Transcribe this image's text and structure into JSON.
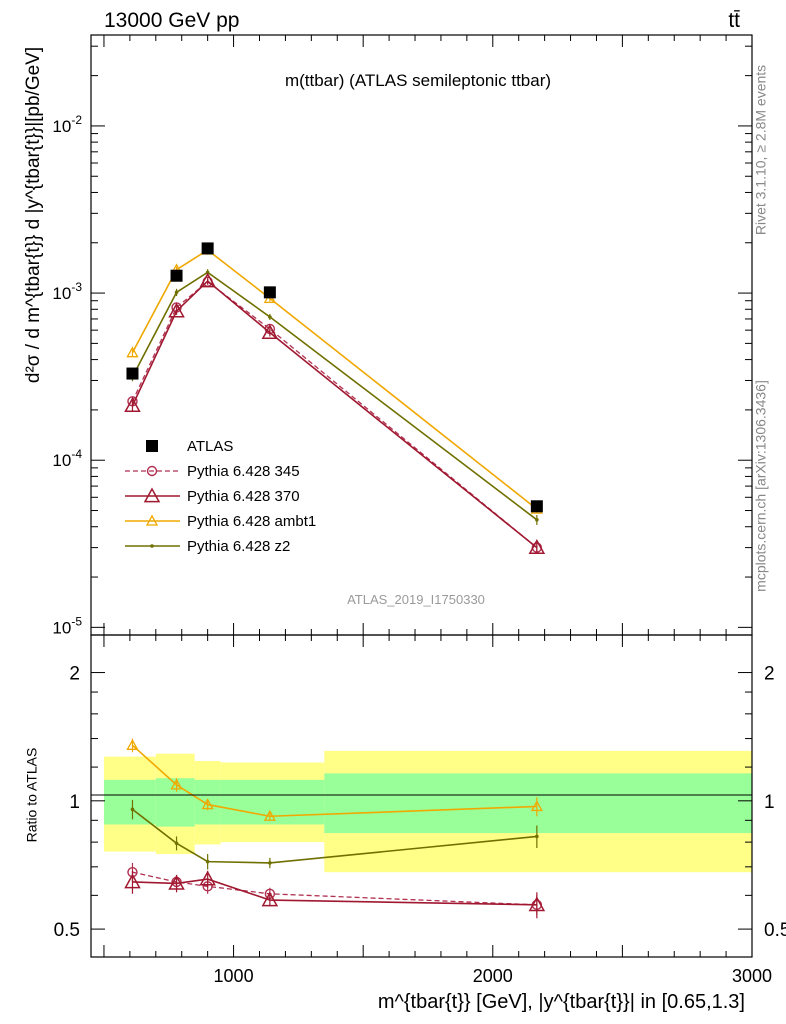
{
  "header": {
    "left": "13000 GeV pp",
    "right": "tt̄"
  },
  "side": {
    "rivet": "Rivet 3.1.10, ≥ 2.8M events",
    "mcplots": "mcplots.cern.ch [arXiv:1306.3436]"
  },
  "plot": {
    "title": "m(ttbar) (ATLAS semileptonic ttbar)",
    "analysis": "ATLAS_2019_I1750330",
    "ylabel": "d²σ / d m^{tbar{t}} d |y^{tbar{t}}|[pb/GeV]",
    "ratio_ylabel": "Ratio to ATLAS",
    "xlabel": "m^{tbar{t}} [GeV], |y^{tbar{t}}| in [0.65,1.3]"
  },
  "colors": {
    "data": "#000000",
    "p345": "#b03050",
    "p370": "#a01830",
    "ambt1": "#f0a800",
    "z2": "#707000",
    "band_inner": "#99ff99",
    "band_outer": "#ffff88"
  },
  "chart_data": [
    {
      "type": "line",
      "yscale": "log",
      "xlim": [
        450,
        3000
      ],
      "ylim": [
        9e-06,
        0.035
      ],
      "xticks": [
        1000,
        2000,
        3000
      ],
      "ytick_labels": [
        "10^-5",
        "10^-4",
        "10^-3",
        "10^-2"
      ],
      "legend_position": "middle-left",
      "bins": [
        [
          500,
          700
        ],
        [
          700,
          850
        ],
        [
          850,
          950
        ],
        [
          950,
          1350
        ],
        [
          1350,
          3000
        ]
      ],
      "x": [
        610,
        780,
        900,
        1140,
        2170
      ],
      "series": [
        {
          "name": "ATLAS",
          "values": [
            0.00033,
            0.00127,
            0.00185,
            0.00101,
            5.3e-05
          ]
        },
        {
          "name": "Pythia 6.428 345",
          "values": [
            0.000225,
            0.00082,
            0.00117,
            0.00061,
            3e-05
          ],
          "err": [
            1.5e-05,
            4e-05,
            5e-05,
            3e-05,
            1.8e-06
          ]
        },
        {
          "name": "Pythia 6.428 370",
          "values": [
            0.000212,
            0.00078,
            0.00118,
            0.00058,
            3e-05
          ],
          "err": [
            1.5e-05,
            4e-05,
            5e-05,
            3e-05,
            1.8e-06
          ]
        },
        {
          "name": "Pythia 6.428 ambt1",
          "values": [
            0.00044,
            0.00138,
            0.00181,
            0.00093,
            5.1e-05
          ],
          "err": [
            2e-05,
            6e-05,
            7e-05,
            4e-05,
            2.5e-06
          ]
        },
        {
          "name": "Pythia 6.428 z2",
          "values": [
            0.000315,
            0.00101,
            0.00133,
            0.00072,
            4.4e-05
          ],
          "err": [
            1.8e-05,
            5e-05,
            6e-05,
            3e-05,
            3e-06
          ]
        }
      ]
    },
    {
      "type": "line",
      "title": "Ratio to ATLAS",
      "xlim": [
        450,
        3000
      ],
      "ylim": [
        0.5,
        2.0
      ],
      "yscale": "log",
      "yticks": [
        0.5,
        1,
        2
      ],
      "bins": [
        [
          500,
          700
        ],
        [
          700,
          850
        ],
        [
          850,
          950
        ],
        [
          950,
          1350
        ],
        [
          1350,
          3000
        ]
      ],
      "band_inner": [
        [
          0.88,
          1.12
        ],
        [
          0.87,
          1.13
        ],
        [
          0.88,
          1.12
        ],
        [
          0.88,
          1.12
        ],
        [
          0.84,
          1.16
        ]
      ],
      "band_outer": [
        [
          0.76,
          1.27
        ],
        [
          0.75,
          1.29
        ],
        [
          0.79,
          1.24
        ],
        [
          0.8,
          1.23
        ],
        [
          0.68,
          1.31
        ]
      ],
      "x": [
        610,
        780,
        900,
        1140,
        2170
      ],
      "series": [
        {
          "name": "Pythia 6.428 345",
          "values": [
            0.68,
            0.645,
            0.63,
            0.605,
            0.57
          ],
          "err": [
            0.035,
            0.025,
            0.025,
            0.02,
            0.03
          ]
        },
        {
          "name": "Pythia 6.428 370",
          "values": [
            0.645,
            0.64,
            0.655,
            0.585,
            0.57
          ],
          "err": [
            0.04,
            0.03,
            0.03,
            0.02,
            0.04
          ]
        },
        {
          "name": "Pythia 6.428 ambt1",
          "values": [
            1.35,
            1.09,
            0.98,
            0.92,
            0.97
          ],
          "err": [
            0.05,
            0.04,
            0.03,
            0.02,
            0.05
          ]
        },
        {
          "name": "Pythia 6.428 z2",
          "values": [
            0.955,
            0.795,
            0.72,
            0.715,
            0.825
          ],
          "err": [
            0.05,
            0.03,
            0.03,
            0.02,
            0.05
          ]
        }
      ]
    }
  ]
}
